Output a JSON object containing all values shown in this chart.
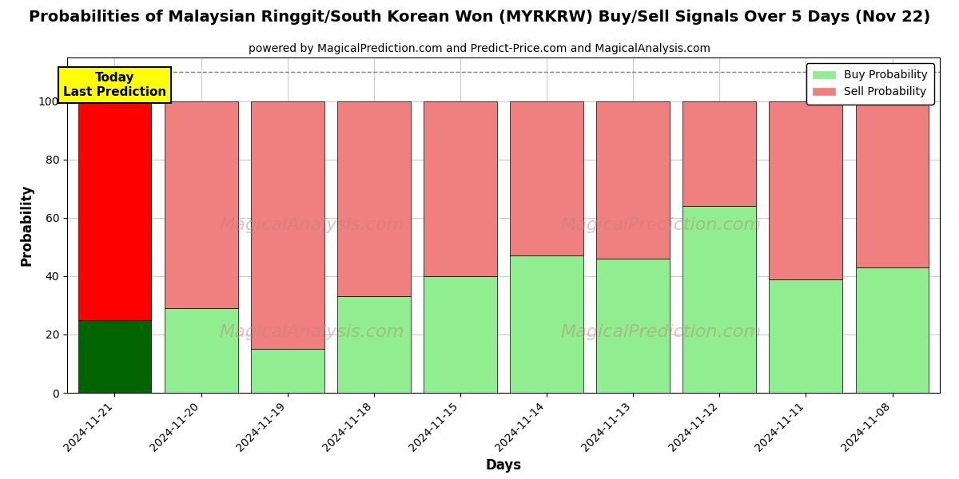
{
  "title": "Probabilities of Malaysian Ringgit/South Korean Won (MYRKRW) Buy/Sell Signals Over 5 Days (Nov 22)",
  "subtitle": "powered by MagicalPrediction.com and Predict-Price.com and MagicalAnalysis.com",
  "xlabel": "Days",
  "ylabel": "Probability",
  "categories": [
    "2024-11-21",
    "2024-11-20",
    "2024-11-19",
    "2024-11-18",
    "2024-11-15",
    "2024-11-14",
    "2024-11-13",
    "2024-11-12",
    "2024-11-11",
    "2024-11-08"
  ],
  "buy_values": [
    25,
    29,
    15,
    33,
    40,
    47,
    46,
    64,
    39,
    43
  ],
  "sell_values": [
    75,
    71,
    85,
    67,
    60,
    53,
    54,
    36,
    61,
    57
  ],
  "buy_color_today": "#006400",
  "sell_color_today": "#FF0000",
  "buy_color_normal": "#90EE90",
  "sell_color_normal": "#F08080",
  "ylim": [
    0,
    115
  ],
  "yticks": [
    0,
    20,
    40,
    60,
    80,
    100
  ],
  "dashed_line_y": 110,
  "today_label": "Today\nLast Prediction",
  "today_box_color": "#FFFF00",
  "legend_buy_label": "Buy Probability",
  "legend_sell_label": "Sell Probability",
  "background_color": "#FFFFFF",
  "grid_color": "#CCCCCC",
  "bar_width": 0.85
}
